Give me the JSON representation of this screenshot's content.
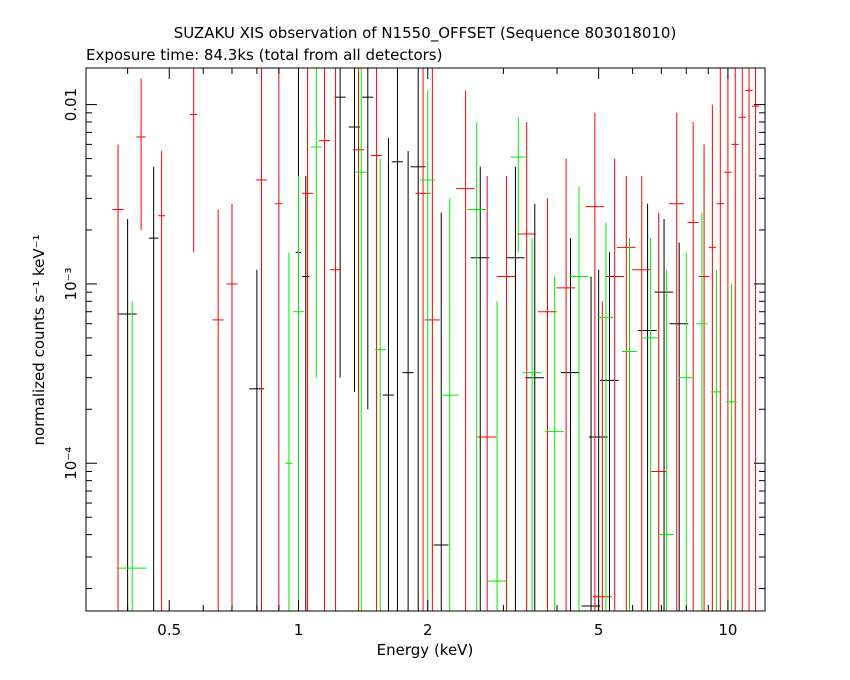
{
  "chart_data": {
    "type": "scatter",
    "title": "SUZAKU XIS observation of N1550_OFFSET (Sequence 803018010)",
    "subtitle": "Exposure time: 84.3ks (total from all detectors)",
    "xlabel": "Energy (keV)",
    "ylabel": "normalized counts s⁻¹ keV⁻¹",
    "xscale": "log",
    "yscale": "log",
    "xlim": [
      0.32,
      12.2
    ],
    "ylim": [
      1.5e-05,
      0.016
    ],
    "x_ticks": [
      {
        "value": 0.5,
        "label": "0.5"
      },
      {
        "value": 1,
        "label": "1"
      },
      {
        "value": 2,
        "label": "2"
      },
      {
        "value": 5,
        "label": "5"
      },
      {
        "value": 10,
        "label": "10"
      }
    ],
    "y_ticks": [
      {
        "value": 0.0001,
        "label": "10⁻⁴"
      },
      {
        "value": 0.001,
        "label": "10⁻³"
      },
      {
        "value": 0.01,
        "label": "0.01"
      }
    ],
    "grid": false,
    "legend": "none",
    "series_colors": [
      "#000000",
      "#ff0000",
      "#00ee00"
    ],
    "series": [
      {
        "color": "#000000",
        "points": [
          [
            0.4,
            0.00068,
            0.05,
            1.5e-05,
            0.0023
          ],
          [
            0.46,
            0.0018,
            0.025,
            1.5e-05,
            0.0045
          ],
          [
            0.8,
            0.00026,
            0.04,
            1.5e-05,
            0.0012
          ],
          [
            1.0,
            0.0015,
            0.015,
            1.5e-05,
            0.016
          ],
          [
            1.04,
            0.0011,
            0.02,
            1.5e-05,
            0.004
          ],
          [
            1.25,
            0.011,
            0.03,
            0.0003,
            0.016
          ],
          [
            1.35,
            0.0075,
            0.03,
            0.00025,
            0.016
          ],
          [
            1.45,
            0.011,
            0.03,
            0.0002,
            0.016
          ],
          [
            1.62,
            0.00024,
            0.03,
            1.5e-05,
            0.0065
          ],
          [
            1.7,
            0.0048,
            0.03,
            1.5e-05,
            0.016
          ],
          [
            1.8,
            0.00032,
            0.03,
            1.5e-05,
            0.0055
          ],
          [
            1.9,
            0.0045,
            0.04,
            1.5e-05,
            0.016
          ],
          [
            2.15,
            3.5e-05,
            0.04,
            1.5e-05,
            0.0025
          ],
          [
            2.65,
            0.0014,
            0.05,
            1.5e-05,
            0.0045
          ],
          [
            3.2,
            0.0014,
            0.05,
            1.5e-05,
            0.0045
          ],
          [
            3.55,
            0.0003,
            0.05,
            1.5e-05,
            0.0028
          ],
          [
            4.3,
            0.00032,
            0.05,
            1.5e-05,
            0.0018
          ],
          [
            4.8,
            1.6e-05,
            0.05,
            1.5e-05,
            0.0011
          ],
          [
            5.0,
            0.00014,
            0.05,
            1.5e-05,
            0.0012
          ],
          [
            5.3,
            0.00029,
            0.05,
            1.5e-05,
            0.0015
          ],
          [
            6.5,
            0.00055,
            0.05,
            1.5e-05,
            0.0028
          ],
          [
            7.1,
            0.0009,
            0.05,
            1.5e-05,
            0.0023
          ],
          [
            7.7,
            0.0006,
            0.05,
            1.5e-05,
            0.0017
          ]
        ]
      },
      {
        "color": "#ff0000",
        "points": [
          [
            0.38,
            0.0026,
            0.03,
            1.5e-05,
            0.006
          ],
          [
            0.43,
            0.0066,
            0.025,
            0.002,
            0.014
          ],
          [
            0.48,
            0.0024,
            0.02,
            1.5e-05,
            0.0055
          ],
          [
            0.57,
            0.0088,
            0.02,
            0.0015,
            0.016
          ],
          [
            0.65,
            0.00063,
            0.03,
            1.5e-05,
            0.0026
          ],
          [
            0.7,
            0.001,
            0.03,
            1.5e-05,
            0.0028
          ],
          [
            0.82,
            0.0038,
            0.03,
            1.5e-05,
            0.016
          ],
          [
            0.9,
            0.0028,
            0.02,
            1.5e-05,
            0.016
          ],
          [
            1.05,
            0.0032,
            0.03,
            1.5e-05,
            0.016
          ],
          [
            1.15,
            0.0063,
            0.03,
            1.5e-05,
            0.016
          ],
          [
            1.22,
            0.0012,
            0.03,
            1.5e-05,
            0.016
          ],
          [
            1.38,
            0.0056,
            0.03,
            1.5e-05,
            0.016
          ],
          [
            1.52,
            0.0052,
            0.03,
            1.5e-05,
            0.016
          ],
          [
            1.95,
            0.0032,
            0.04,
            1.5e-05,
            0.016
          ],
          [
            2.05,
            0.00063,
            0.04,
            1.5e-05,
            0.016
          ],
          [
            2.45,
            0.0034,
            0.05,
            1.5e-05,
            0.012
          ],
          [
            2.75,
            0.00014,
            0.05,
            1.5e-05,
            0.004
          ],
          [
            3.05,
            0.0011,
            0.05,
            1.5e-05,
            0.004
          ],
          [
            3.4,
            0.0019,
            0.05,
            1.5e-05,
            0.008
          ],
          [
            3.8,
            0.0007,
            0.05,
            1.5e-05,
            0.003
          ],
          [
            4.2,
            0.00095,
            0.05,
            1.5e-05,
            0.005
          ],
          [
            4.9,
            0.0027,
            0.05,
            1.5e-05,
            0.009
          ],
          [
            5.1,
            1.8e-05,
            0.05,
            1.5e-05,
            0.0008
          ],
          [
            5.45,
            0.0011,
            0.05,
            1.5e-05,
            0.005
          ],
          [
            5.8,
            0.0016,
            0.05,
            1.5e-05,
            0.004
          ],
          [
            6.3,
            0.0012,
            0.05,
            1.5e-05,
            0.004
          ],
          [
            6.9,
            9e-05,
            0.04,
            1.5e-05,
            0.0025
          ],
          [
            7.6,
            0.0028,
            0.04,
            1.5e-05,
            0.009
          ],
          [
            8.3,
            0.0022,
            0.03,
            1.5e-05,
            0.008
          ],
          [
            8.8,
            0.0011,
            0.03,
            1.5e-05,
            0.006
          ],
          [
            9.2,
            0.0016,
            0.02,
            1.5e-05,
            0.01
          ],
          [
            9.6,
            0.0028,
            0.02,
            1.5e-05,
            0.016
          ],
          [
            10.0,
            0.0042,
            0.02,
            1.5e-05,
            0.016
          ],
          [
            10.4,
            0.006,
            0.02,
            1.5e-05,
            0.016
          ],
          [
            10.8,
            0.0085,
            0.02,
            1.5e-05,
            0.016
          ],
          [
            11.2,
            0.012,
            0.02,
            1.5e-05,
            0.016
          ],
          [
            11.6,
            0.0098,
            0.02,
            1.5e-05,
            0.016
          ]
        ]
      },
      {
        "color": "#00ee00",
        "points": [
          [
            0.41,
            2.6e-05,
            0.08,
            1.5e-05,
            0.0008
          ],
          [
            0.95,
            0.0001,
            0.02,
            1.5e-05,
            0.0015
          ],
          [
            1.0,
            0.0007,
            0.03,
            1.5e-05,
            0.004
          ],
          [
            1.1,
            0.0058,
            0.03,
            0.0003,
            0.016
          ],
          [
            1.4,
            0.0042,
            0.03,
            1.5e-05,
            0.016
          ],
          [
            1.55,
            0.00043,
            0.03,
            1.5e-05,
            0.005
          ],
          [
            2.0,
            0.0038,
            0.04,
            1.5e-05,
            0.012
          ],
          [
            2.25,
            0.00024,
            0.05,
            1.5e-05,
            0.003
          ],
          [
            2.6,
            0.0026,
            0.05,
            1.5e-05,
            0.008
          ],
          [
            2.9,
            2.2e-05,
            0.05,
            1.5e-05,
            0.0008
          ],
          [
            3.25,
            0.0051,
            0.04,
            0.0015,
            0.0085
          ],
          [
            3.5,
            0.00032,
            0.05,
            1.5e-05,
            0.0018
          ],
          [
            3.95,
            0.00015,
            0.05,
            1.5e-05,
            0.0011
          ],
          [
            4.5,
            0.0011,
            0.05,
            1.5e-05,
            0.0035
          ],
          [
            5.2,
            0.00065,
            0.04,
            1.5e-05,
            0.0022
          ],
          [
            5.9,
            0.00042,
            0.04,
            1.5e-05,
            0.0018
          ],
          [
            6.6,
            0.0005,
            0.04,
            1.5e-05,
            0.0018
          ],
          [
            7.2,
            4e-05,
            0.04,
            1.5e-05,
            0.0012
          ],
          [
            8.0,
            0.0003,
            0.04,
            1.5e-05,
            0.0015
          ],
          [
            8.7,
            0.0006,
            0.03,
            1.5e-05,
            0.0025
          ],
          [
            9.4,
            0.00025,
            0.03,
            1.5e-05,
            0.0012
          ],
          [
            10.2,
            0.00022,
            0.03,
            1.5e-05,
            0.001
          ]
        ]
      }
    ]
  }
}
